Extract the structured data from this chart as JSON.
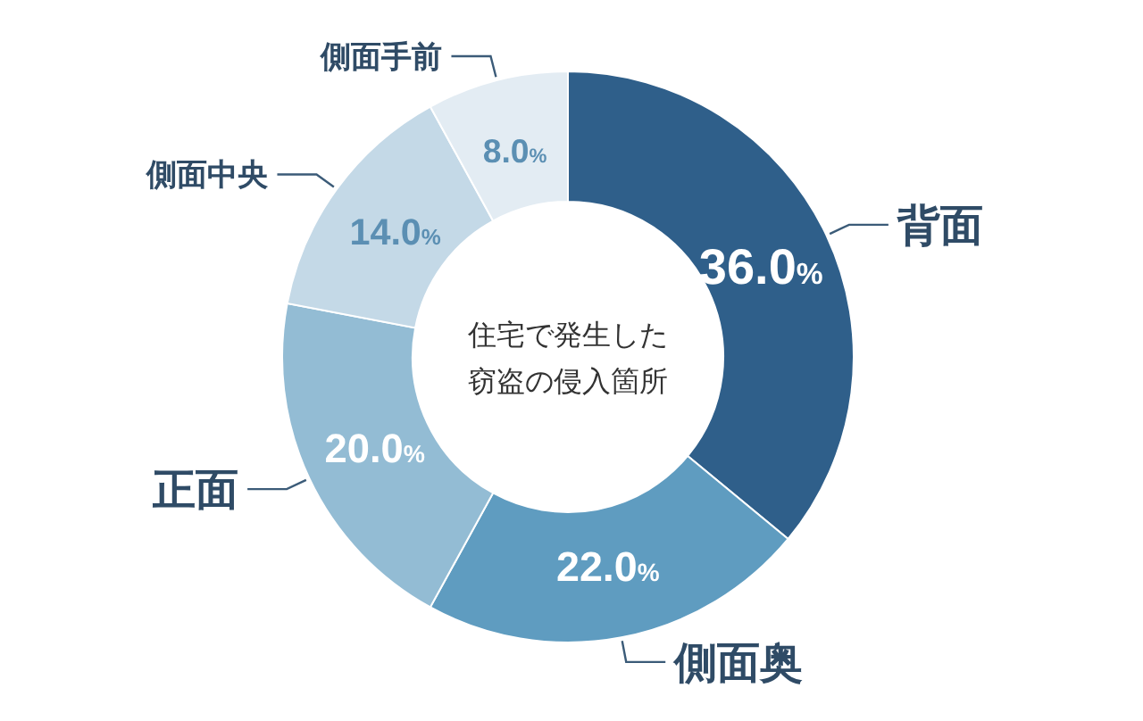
{
  "chart_data": {
    "type": "donut",
    "title": "住宅で発生した窃盗の侵入箇所",
    "categories": [
      "背面",
      "側面奥",
      "正面",
      "側面中央",
      "側面手前"
    ],
    "values": [
      36.0,
      22.0,
      20.0,
      14.0,
      8.0
    ],
    "value_labels": [
      "36.0%",
      "22.0%",
      "20.0%",
      "14.0%",
      "8.0%"
    ],
    "colors": [
      "#2f5f8a",
      "#5f9cc0",
      "#93bcd4",
      "#c4d9e7",
      "#e3ecf3"
    ]
  }
}
